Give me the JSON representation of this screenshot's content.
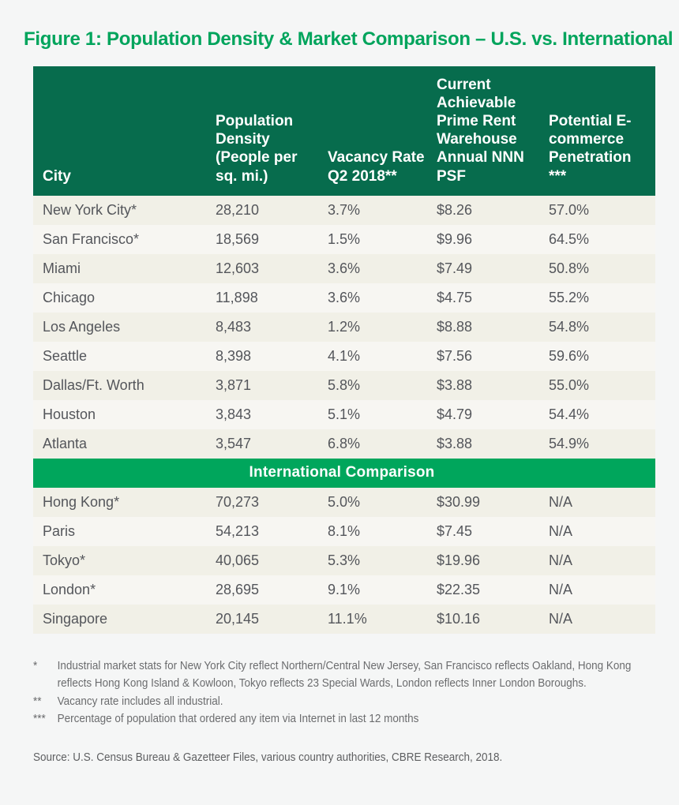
{
  "title": "Figure 1: Population Density & Market Comparison – U.S. vs. International",
  "table": {
    "columns": [
      "City",
      "Population Density (People per sq. mi.)",
      "Vacancy Rate Q2 2018**",
      "Current Achievable Prime Rent Warehouse Annual NNN PSF",
      "Potential E-commerce Penetration ***"
    ],
    "us_rows": [
      {
        "city": "New York City*",
        "density": "28,210",
        "vacancy": "3.7%",
        "rent": "$8.26",
        "penetration": "57.0%"
      },
      {
        "city": "San Francisco*",
        "density": "18,569",
        "vacancy": "1.5%",
        "rent": "$9.96",
        "penetration": "64.5%"
      },
      {
        "city": "Miami",
        "density": "12,603",
        "vacancy": "3.6%",
        "rent": "$7.49",
        "penetration": "50.8%"
      },
      {
        "city": "Chicago",
        "density": "11,898",
        "vacancy": "3.6%",
        "rent": "$4.75",
        "penetration": "55.2%"
      },
      {
        "city": "Los Angeles",
        "density": "8,483",
        "vacancy": "1.2%",
        "rent": "$8.88",
        "penetration": "54.8%"
      },
      {
        "city": "Seattle",
        "density": "8,398",
        "vacancy": "4.1%",
        "rent": "$7.56",
        "penetration": "59.6%"
      },
      {
        "city": "Dallas/Ft. Worth",
        "density": "3,871",
        "vacancy": "5.8%",
        "rent": "$3.88",
        "penetration": "55.0%"
      },
      {
        "city": "Houston",
        "density": "3,843",
        "vacancy": "5.1%",
        "rent": "$4.79",
        "penetration": "54.4%"
      },
      {
        "city": "Atlanta",
        "density": "3,547",
        "vacancy": "6.8%",
        "rent": "$3.88",
        "penetration": "54.9%"
      }
    ],
    "international_banner": "International Comparison",
    "international_rows": [
      {
        "city": "Hong Kong*",
        "density": "70,273",
        "vacancy": "5.0%",
        "rent": "$30.99",
        "penetration": "N/A"
      },
      {
        "city": "Paris",
        "density": "54,213",
        "vacancy": "8.1%",
        "rent": "$7.45",
        "penetration": "N/A"
      },
      {
        "city": "Tokyo*",
        "density": "40,065",
        "vacancy": "5.3%",
        "rent": "$19.96",
        "penetration": "N/A"
      },
      {
        "city": "London*",
        "density": "28,695",
        "vacancy": "9.1%",
        "rent": "$22.35",
        "penetration": "N/A"
      },
      {
        "city": "Singapore",
        "density": "20,145",
        "vacancy": "11.1%",
        "rent": "$10.16",
        "penetration": "N/A"
      }
    ]
  },
  "footnotes": [
    {
      "marker": "*",
      "text": "Industrial market stats for New York City reflect Northern/Central New Jersey, San Francisco reflects Oakland, Hong Kong reflects Hong Kong Island & Kowloon, Tokyo reflects 23 Special Wards, London reflects Inner London Boroughs."
    },
    {
      "marker": "**",
      "text": "Vacancy rate includes all industrial."
    },
    {
      "marker": "***",
      "text": "Percentage of population that ordered any item via Internet in last 12 months"
    }
  ],
  "source": "Source: U.S. Census Bureau & Gazetteer Files, various country authorities, CBRE Research, 2018.",
  "colors": {
    "page_background": "#f5f6f6",
    "header_green": "#076c4d",
    "banner_green": "#00a65c",
    "title_green": "#00a45c",
    "row_cream": "#f1f0e7",
    "row_light": "#f7f6f2",
    "body_text": "#54565b",
    "footnote_text": "#6b6c6e"
  },
  "chart_data": {
    "type": "table",
    "title": "Figure 1: Population Density & Market Comparison – U.S. vs. International",
    "columns": [
      "City",
      "Population Density (People per sq. mi.)",
      "Vacancy Rate Q2 2018**",
      "Current Achievable Prime Rent Warehouse Annual NNN PSF",
      "Potential E-commerce Penetration ***"
    ],
    "sections": [
      {
        "name": "U.S.",
        "rows": [
          [
            "New York City*",
            28210,
            "3.7%",
            "$8.26",
            "57.0%"
          ],
          [
            "San Francisco*",
            18569,
            "1.5%",
            "$9.96",
            "64.5%"
          ],
          [
            "Miami",
            12603,
            "3.6%",
            "$7.49",
            "50.8%"
          ],
          [
            "Chicago",
            11898,
            "3.6%",
            "$4.75",
            "55.2%"
          ],
          [
            "Los Angeles",
            8483,
            "1.2%",
            "$8.88",
            "54.8%"
          ],
          [
            "Seattle",
            8398,
            "4.1%",
            "$7.56",
            "59.6%"
          ],
          [
            "Dallas/Ft. Worth",
            3871,
            "5.8%",
            "$3.88",
            "55.0%"
          ],
          [
            "Houston",
            3843,
            "5.1%",
            "$4.79",
            "54.4%"
          ],
          [
            "Atlanta",
            3547,
            "6.8%",
            "$3.88",
            "54.9%"
          ]
        ]
      },
      {
        "name": "International Comparison",
        "rows": [
          [
            "Hong Kong*",
            70273,
            "5.0%",
            "$30.99",
            "N/A"
          ],
          [
            "Paris",
            54213,
            "8.1%",
            "$7.45",
            "N/A"
          ],
          [
            "Tokyo*",
            40065,
            "5.3%",
            "$19.96",
            "N/A"
          ],
          [
            "London*",
            28695,
            "9.1%",
            "$22.35",
            "N/A"
          ],
          [
            "Singapore",
            20145,
            "11.1%",
            "$10.16",
            "N/A"
          ]
        ]
      }
    ]
  }
}
